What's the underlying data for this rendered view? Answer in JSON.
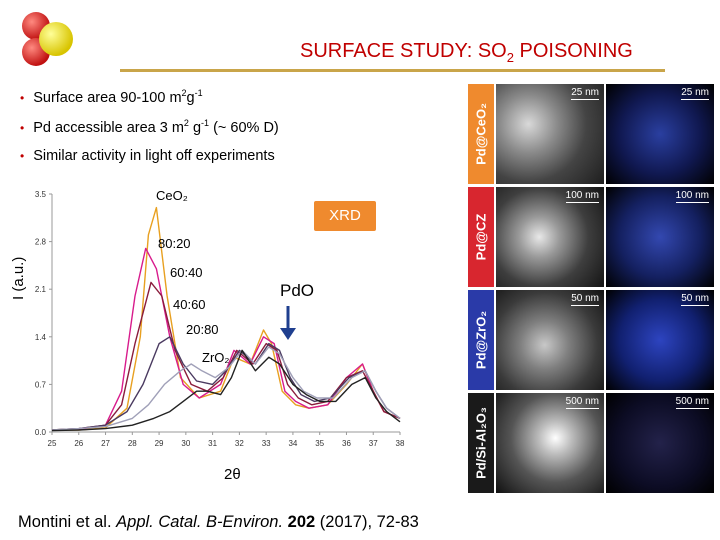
{
  "slide": {
    "title_main": "SURFACE STUDY: SO",
    "title_sub": "2",
    "title_tail": " POISONING",
    "bullets": [
      {
        "pre": "Surface area ",
        "val": "90-100 m",
        "sup1": "2",
        "mid": "g",
        "sup2": "-1",
        "post": ""
      },
      {
        "pre": "Pd accessible area ",
        "val": "3 m",
        "sup1": "2",
        "mid": " g",
        "sup2": "-1",
        "post": " (~ 60% D)"
      },
      {
        "pre": "Similar activity in light off experiments",
        "val": "",
        "sup1": "",
        "mid": "",
        "sup2": "",
        "post": ""
      }
    ],
    "citation": {
      "authors": "Montini et al. ",
      "journal": "Appl. Catal. B-Environ.",
      "volume": "202",
      "rest": " (2017), 72-83"
    }
  },
  "chart_data": {
    "type": "line",
    "title": "",
    "xlabel": "2θ",
    "ylabel": "I (a.u.)",
    "x_ticks": [
      "25",
      "26",
      "27",
      "28",
      "29",
      "30",
      "31",
      "32",
      "33",
      "34",
      "35",
      "36",
      "37",
      "38"
    ],
    "y_ticks": [
      "0.0",
      "0.7",
      "1.4",
      "2.1",
      "2.8",
      "3.5"
    ],
    "xlim": [
      25,
      38
    ],
    "ylim": [
      0,
      3.5
    ],
    "annotations": {
      "ceo2": "CeO₂",
      "s8020": "80:20",
      "s6040": "60:40",
      "s4060": "40:60",
      "s2080": "20:80",
      "zro2": "ZrO₂",
      "xrd": "XRD",
      "pdo": "PdO"
    },
    "series": [
      {
        "color": "#e8a020",
        "x": [
          25,
          26,
          27,
          27.8,
          28.3,
          28.6,
          28.9,
          29.3,
          29.8,
          30.5,
          31.3,
          31.8,
          32.4,
          32.9,
          33.2,
          33.6,
          34.1,
          34.6,
          35.3,
          36,
          36.6,
          37,
          37.4,
          38
        ],
        "y": [
          0.03,
          0.03,
          0.06,
          0.35,
          1.4,
          2.9,
          3.3,
          2.0,
          0.8,
          0.5,
          0.6,
          1.1,
          1.0,
          1.5,
          1.3,
          0.6,
          0.4,
          0.35,
          0.4,
          0.7,
          1.0,
          0.6,
          0.3,
          0.2
        ]
      },
      {
        "color": "#d81b8c",
        "x": [
          25,
          26,
          27,
          27.6,
          28.1,
          28.5,
          28.9,
          29.4,
          29.9,
          30.5,
          31.3,
          31.8,
          32.4,
          32.9,
          33.3,
          33.7,
          34.1,
          34.6,
          35.3,
          36,
          36.6,
          37,
          37.4,
          38
        ],
        "y": [
          0.03,
          0.04,
          0.1,
          0.6,
          2.0,
          2.7,
          2.4,
          1.4,
          0.7,
          0.5,
          0.7,
          1.2,
          1.0,
          1.4,
          1.3,
          0.6,
          0.45,
          0.35,
          0.4,
          0.8,
          1.0,
          0.6,
          0.3,
          0.2
        ]
      },
      {
        "color": "#8a1c3c",
        "x": [
          25,
          26,
          27,
          27.6,
          28.1,
          28.7,
          29.1,
          29.6,
          30.2,
          30.8,
          31.4,
          31.9,
          32.5,
          33,
          33.4,
          33.8,
          34.2,
          34.7,
          35.3,
          36,
          36.6,
          37,
          37.4,
          38
        ],
        "y": [
          0.03,
          0.05,
          0.1,
          0.4,
          1.3,
          2.2,
          2.0,
          1.2,
          0.7,
          0.6,
          0.8,
          1.2,
          1.0,
          1.3,
          1.2,
          0.7,
          0.5,
          0.4,
          0.45,
          0.8,
          0.9,
          0.6,
          0.3,
          0.2
        ]
      },
      {
        "color": "#4a3a60",
        "x": [
          25,
          26,
          27,
          27.8,
          28.4,
          29,
          29.4,
          29.9,
          30.4,
          31,
          31.5,
          32,
          32.6,
          33.1,
          33.5,
          33.9,
          34.3,
          34.8,
          35.4,
          36.1,
          36.7,
          37.1,
          37.5,
          38
        ],
        "y": [
          0.03,
          0.05,
          0.1,
          0.3,
          0.7,
          1.3,
          1.4,
          1.0,
          0.75,
          0.7,
          0.9,
          1.2,
          1.0,
          1.3,
          1.2,
          0.8,
          0.55,
          0.45,
          0.5,
          0.8,
          0.9,
          0.6,
          0.35,
          0.2
        ]
      },
      {
        "color": "#a0a0b8",
        "x": [
          25,
          26,
          27,
          28,
          28.6,
          29.2,
          29.8,
          30.2,
          30.6,
          31.1,
          31.6,
          32.1,
          32.6,
          33.1,
          33.5,
          34,
          34.4,
          34.9,
          35.5,
          36.2,
          36.7,
          37.1,
          37.5,
          38
        ],
        "y": [
          0.03,
          0.05,
          0.08,
          0.2,
          0.4,
          0.7,
          0.9,
          1.0,
          0.9,
          0.8,
          0.95,
          1.2,
          1.0,
          1.25,
          1.15,
          0.8,
          0.6,
          0.5,
          0.5,
          0.8,
          0.9,
          0.6,
          0.35,
          0.2
        ]
      },
      {
        "color": "#222222",
        "x": [
          25,
          26,
          27,
          28,
          28.8,
          29.4,
          29.9,
          30.4,
          30.8,
          31.3,
          31.7,
          32.1,
          32.6,
          33.1,
          33.5,
          34,
          34.5,
          35,
          35.6,
          36.2,
          36.7,
          37.1,
          37.5,
          38
        ],
        "y": [
          0.02,
          0.03,
          0.05,
          0.1,
          0.2,
          0.3,
          0.45,
          0.6,
          0.6,
          0.55,
          0.8,
          1.2,
          0.9,
          1.1,
          1.0,
          0.7,
          0.55,
          0.45,
          0.45,
          0.7,
          0.8,
          0.5,
          0.3,
          0.15
        ]
      }
    ]
  },
  "micrographs": [
    {
      "label": "Pd@CeO₂",
      "color": "#ef8a2e",
      "scale_left": "25 nm",
      "scale_right": "25 nm"
    },
    {
      "label": "Pd@CZ",
      "color": "#d8262f",
      "scale_left": "100 nm",
      "scale_right": "100 nm"
    },
    {
      "label": "Pd@ZrO₂",
      "color": "#2a3aa8",
      "scale_left": "50 nm",
      "scale_right": "50 nm"
    },
    {
      "label": "Pd/Si-Al₂O₃",
      "color": "#1a1a1a",
      "scale_left": "500 nm",
      "scale_right": "500 nm"
    }
  ]
}
